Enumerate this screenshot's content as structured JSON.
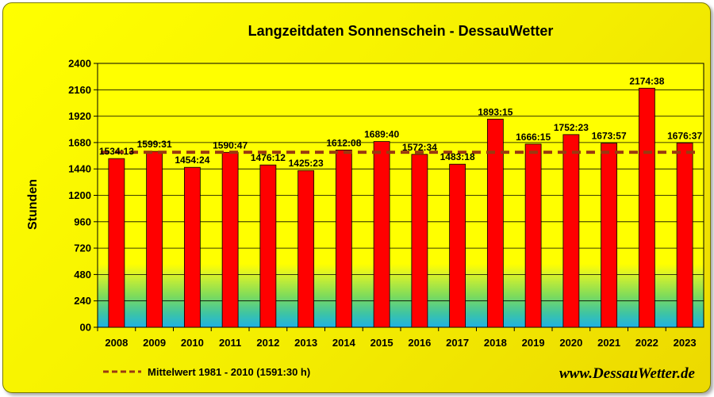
{
  "chart_data": {
    "type": "bar",
    "title": "Langzeitdaten Sonnenschein - DessauWetter",
    "ylabel": "Stunden",
    "xlabel": "",
    "ylim": [
      0,
      2400
    ],
    "yticks": [
      "00",
      "240",
      "480",
      "720",
      "960",
      "1200",
      "1440",
      "1680",
      "1920",
      "2160",
      "2400"
    ],
    "categories": [
      "2008",
      "2009",
      "2010",
      "2011",
      "2012",
      "2013",
      "2014",
      "2015",
      "2016",
      "2017",
      "2018",
      "2019",
      "2020",
      "2021",
      "2022",
      "2023"
    ],
    "values": [
      1534.22,
      1599.52,
      1454.4,
      1590.78,
      1476.2,
      1425.38,
      1612.13,
      1689.67,
      1572.57,
      1483.3,
      1893.25,
      1666.25,
      1752.38,
      1673.95,
      2174.63,
      1676.62
    ],
    "data_labels": [
      "1534:13",
      "1599:31",
      "1454:24",
      "1590:47",
      "1476:12",
      "1425:23",
      "1612:08",
      "1689:40",
      "1572:34",
      "1483:18",
      "1893:15",
      "1666:15",
      "1752:23",
      "1673:57",
      "2174:38",
      "1676:37"
    ],
    "reference_line": {
      "value": 1591.5,
      "label": "Mittelwert 1981 - 2010 (1591:30 h)",
      "color": "#9a3a10",
      "style": "dashed"
    },
    "bar_color": "#ff0000",
    "grid": true,
    "legend": "bottom-left",
    "credit": "www.DessauWetter.de"
  }
}
